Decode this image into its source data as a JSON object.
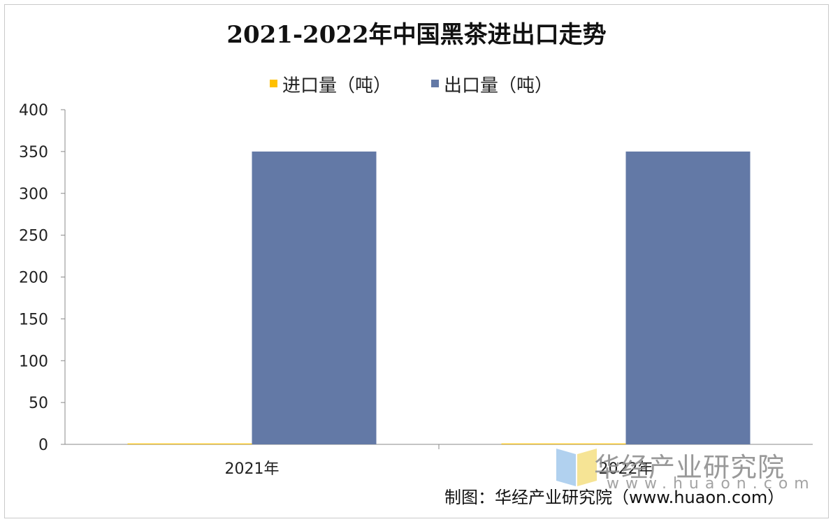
{
  "chart_data": {
    "type": "bar",
    "title": "2021-2022年中国黑茶进出口走势",
    "categories": [
      "2021年",
      "2022年"
    ],
    "series": [
      {
        "name": "进口量（吨）",
        "values": [
          1,
          1
        ],
        "color": "#FFC000"
      },
      {
        "name": "出口量（吨）",
        "values": [
          350,
          350
        ],
        "color": "#6379A6"
      }
    ],
    "ylim": [
      0,
      400
    ],
    "yticks": [
      0,
      50,
      100,
      150,
      200,
      250,
      300,
      350,
      400
    ],
    "grid": false,
    "legend_position": "top"
  },
  "footer": "制图：华经产业研究院（www.huaon.com）",
  "watermark": {
    "title": "华经产业研究院",
    "url": "www.huaon.com"
  }
}
